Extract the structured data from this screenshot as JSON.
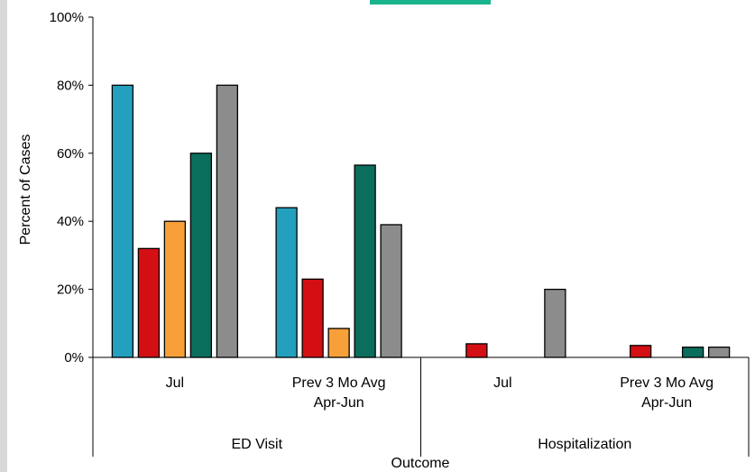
{
  "chart_data": {
    "type": "bar",
    "title": "",
    "xlabel": "Outcome",
    "ylabel": "Percent of Cases",
    "ylim": [
      0,
      100
    ],
    "yticks": [
      "0%",
      "20%",
      "40%",
      "60%",
      "80%",
      "100%"
    ],
    "grid": false,
    "legend": "top",
    "groups": [
      {
        "name": "ED Visit",
        "categories": [
          {
            "label_lines": [
              "Jul"
            ],
            "values": [
              80,
              32,
              40,
              60,
              80
            ]
          },
          {
            "label_lines": [
              "Prev 3 Mo Avg",
              "Apr-Jun"
            ],
            "values": [
              44,
              23,
              8.5,
              56.5,
              39
            ]
          }
        ]
      },
      {
        "name": "Hospitalization",
        "categories": [
          {
            "label_lines": [
              "Jul"
            ],
            "values": [
              0,
              4,
              0,
              0,
              20
            ]
          },
          {
            "label_lines": [
              "Prev 3 Mo Avg",
              "Apr-Jun"
            ],
            "values": [
              0,
              3.5,
              0,
              3,
              3
            ]
          }
        ]
      }
    ],
    "series_colors": [
      "#22a0be",
      "#d40f14",
      "#f7a03a",
      "#0b6e5c",
      "#8c8c8c"
    ],
    "legend_accent_color": "#19b38c"
  }
}
